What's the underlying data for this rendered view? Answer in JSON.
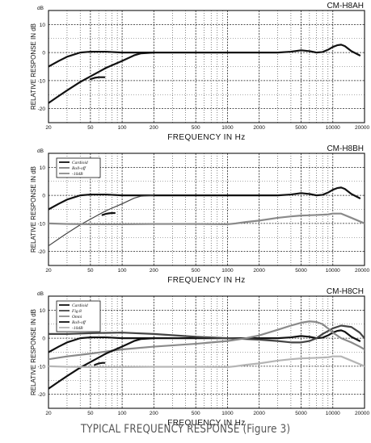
{
  "figure_caption": "TYPICAL FREQUENCY RESPONSE  (Figure 3)",
  "colors": {
    "black": "#111111",
    "dark_gray": "#444444",
    "mid_gray": "#8a8a8a",
    "light_gray": "#b5b5b5"
  },
  "chart_data": [
    {
      "type": "line",
      "title": "CM-H8AH",
      "xlabel": "FREQUENCY IN Hz",
      "ylabel": "RELATIVE RESPONSE IN dB",
      "y_unit": "dB",
      "x_scale": "log",
      "xlim": [
        20,
        20000
      ],
      "ylim": [
        -25,
        15
      ],
      "x_ticks": [
        20,
        50,
        100,
        200,
        500,
        1000,
        2000,
        5000,
        10000,
        20000
      ],
      "x_tick_labels": [
        "20",
        "50",
        "100",
        "200",
        "500",
        "1000",
        "2000",
        "5000",
        "10000",
        "20000"
      ],
      "y_ticks": [
        -20,
        -10,
        0,
        10
      ],
      "y_tick_labels": [
        "-20",
        "-10",
        "0",
        "10"
      ],
      "grid": true,
      "legend": [],
      "series": [
        {
          "color": "#111111",
          "width": 2.2,
          "x": [
            20,
            25,
            30,
            40,
            50,
            70,
            100,
            200,
            500,
            1000,
            2000,
            3000,
            4000,
            5000,
            6000,
            7000,
            8000,
            9000,
            10000,
            11000,
            12000,
            13000,
            15000,
            18000
          ],
          "y": [
            -5,
            -3,
            -1.5,
            0,
            0.3,
            0.3,
            0,
            0,
            0,
            0,
            0,
            0,
            0.3,
            0.8,
            0.5,
            0,
            0.2,
            1,
            2,
            2.6,
            2.8,
            2.3,
            0.5,
            -1
          ]
        },
        {
          "color": "#111111",
          "width": 2.2,
          "x": [
            20,
            25,
            30,
            40,
            50,
            70,
            100,
            130,
            150,
            200
          ],
          "y": [
            -18,
            -15.5,
            -13.5,
            -10.5,
            -8.5,
            -5.5,
            -3,
            -1,
            -0.3,
            0
          ]
        },
        {
          "color": "#111111",
          "width": 2.2,
          "x": [
            50,
            55,
            60,
            65,
            68
          ],
          "y": [
            -9.5,
            -9,
            -8.8,
            -8.8,
            -8.8
          ]
        }
      ]
    },
    {
      "type": "line",
      "title": "CM-H8BH",
      "xlabel": "FREQUENCY IN Hz",
      "ylabel": "RELATIVE RESPONSE IN dB",
      "y_unit": "dB",
      "x_scale": "log",
      "xlim": [
        20,
        20000
      ],
      "ylim": [
        -25,
        15
      ],
      "x_ticks": [
        20,
        50,
        100,
        200,
        500,
        1000,
        2000,
        5000,
        10000,
        20000
      ],
      "x_tick_labels": [
        "20",
        "50",
        "100",
        "200",
        "500",
        "1000",
        "2000",
        "5000",
        "10000",
        "20000"
      ],
      "y_ticks": [
        -20,
        -10,
        0,
        10
      ],
      "y_tick_labels": [
        "-20",
        "-10",
        "0",
        "10"
      ],
      "grid": true,
      "legend": [
        "Cardioid",
        "Roll-off",
        "-10dB"
      ],
      "series": [
        {
          "name": "Cardioid",
          "color": "#111111",
          "width": 2.2,
          "x": [
            20,
            25,
            30,
            40,
            50,
            70,
            100,
            200,
            500,
            1000,
            2000,
            3000,
            4000,
            5000,
            6000,
            7000,
            8000,
            9000,
            10000,
            11000,
            12000,
            13000,
            15000,
            18000
          ],
          "y": [
            -5,
            -3,
            -1.5,
            0,
            0.3,
            0.3,
            0,
            0,
            0,
            0,
            0,
            0,
            0.3,
            0.8,
            0.5,
            0,
            0.2,
            1,
            2,
            2.6,
            2.8,
            2.3,
            0.5,
            -1
          ]
        },
        {
          "name": "Roll-off",
          "color": "#444444",
          "width": 1.2,
          "x": [
            20,
            25,
            30,
            40,
            50,
            70,
            100,
            130,
            150,
            200
          ],
          "y": [
            -18,
            -15.5,
            -13.5,
            -10.5,
            -8.5,
            -5.5,
            -3,
            -1,
            -0.3,
            0
          ]
        },
        {
          "color": "#111111",
          "width": 2.2,
          "x": [
            65,
            70,
            75,
            80,
            85
          ],
          "y": [
            -7,
            -6.6,
            -6.4,
            -6.3,
            -6.3
          ]
        },
        {
          "name": "-10dB",
          "color": "#8a8a8a",
          "width": 2.2,
          "x": [
            20,
            30,
            50,
            100,
            200,
            500,
            1000,
            1200,
            1500,
            2000,
            3000,
            4000,
            5000,
            7000,
            9000,
            10000,
            12000,
            15000,
            20000
          ],
          "y": [
            -10,
            -10.2,
            -10.3,
            -10.3,
            -10.2,
            -10.2,
            -10.3,
            -10,
            -9.5,
            -9,
            -8,
            -7.5,
            -7.2,
            -7,
            -6.8,
            -6.5,
            -6.5,
            -8,
            -10
          ]
        }
      ]
    },
    {
      "type": "line",
      "title": "CM-H8CH",
      "xlabel": "FREQUENCY IN Hz",
      "ylabel": "RELATIVE RESPONSE IN dB",
      "y_unit": "dB",
      "x_scale": "log",
      "xlim": [
        20,
        20000
      ],
      "ylim": [
        -25,
        15
      ],
      "x_ticks": [
        20,
        50,
        100,
        200,
        500,
        1000,
        2000,
        5000,
        10000,
        20000
      ],
      "x_tick_labels": [
        "20",
        "50",
        "100",
        "200",
        "500",
        "1000",
        "2000",
        "5000",
        "10000",
        "20000"
      ],
      "y_ticks": [
        -20,
        -10,
        0,
        10
      ],
      "y_tick_labels": [
        "-20",
        "-10",
        "0",
        "10"
      ],
      "grid": true,
      "legend": [
        "Cardioid",
        "Fig.8",
        "Omni",
        "Roll-off",
        "-10dB"
      ],
      "series": [
        {
          "name": "Cardioid",
          "color": "#111111",
          "width": 2.2,
          "x": [
            20,
            25,
            30,
            40,
            50,
            70,
            100,
            200,
            500,
            1000,
            2000,
            3000,
            4000,
            5000,
            6000,
            7000,
            8000,
            9000,
            10000,
            11000,
            12000,
            13000,
            15000,
            18000
          ],
          "y": [
            -5,
            -3,
            -1.5,
            0,
            0.3,
            0.3,
            0,
            0,
            0,
            0,
            0,
            0,
            0.3,
            0.8,
            0.5,
            0,
            0.2,
            1,
            2,
            2.6,
            2.8,
            2.3,
            0.5,
            -1
          ]
        },
        {
          "name": "Fig.8",
          "color": "#444444",
          "width": 2.2,
          "x": [
            20,
            30,
            50,
            100,
            200,
            500,
            1000,
            2000,
            3000,
            4000,
            5000,
            6000,
            7000,
            8000,
            10000,
            12000,
            15000,
            18000,
            20000
          ],
          "y": [
            1.5,
            1.5,
            1.8,
            2,
            1.5,
            0.5,
            0,
            -0.5,
            -1,
            -1.5,
            -1.5,
            -1,
            0,
            1.5,
            3.5,
            4.5,
            4,
            2,
            0
          ]
        },
        {
          "name": "Omni",
          "color": "#8a8a8a",
          "width": 2.2,
          "x": [
            20,
            30,
            50,
            100,
            200,
            500,
            1000,
            1500,
            2000,
            3000,
            4000,
            5000,
            6000,
            7000,
            8000,
            9000,
            10000,
            12000,
            15000,
            18000,
            20000
          ],
          "y": [
            -7.5,
            -6.5,
            -5.5,
            -4,
            -3,
            -2,
            -1,
            0,
            1,
            3,
            4.5,
            5.5,
            6,
            5.8,
            5,
            3.5,
            2,
            0,
            -1.5,
            -3,
            -4
          ]
        },
        {
          "name": "Roll-off",
          "color": "#111111",
          "width": 2.2,
          "x": [
            20,
            25,
            30,
            40,
            50,
            70,
            100,
            130,
            150,
            200
          ],
          "y": [
            -18,
            -15.5,
            -13.5,
            -10.5,
            -8.5,
            -5.5,
            -3,
            -1,
            -0.3,
            0
          ]
        },
        {
          "color": "#111111",
          "width": 2.2,
          "x": [
            55,
            60,
            65,
            68
          ],
          "y": [
            -9.5,
            -9,
            -8.8,
            -8.8
          ]
        },
        {
          "name": "-10dB",
          "color": "#b5b5b5",
          "width": 2.2,
          "x": [
            20,
            30,
            50,
            100,
            200,
            500,
            1000,
            1200,
            1500,
            2000,
            3000,
            4000,
            5000,
            7000,
            9000,
            10000,
            12000,
            15000,
            20000
          ],
          "y": [
            -10,
            -10.2,
            -10.3,
            -10.3,
            -10.2,
            -10.2,
            -10.3,
            -10,
            -9.5,
            -9,
            -8,
            -7.5,
            -7.2,
            -7,
            -6.8,
            -6.5,
            -6.5,
            -8,
            -10
          ]
        }
      ]
    }
  ]
}
